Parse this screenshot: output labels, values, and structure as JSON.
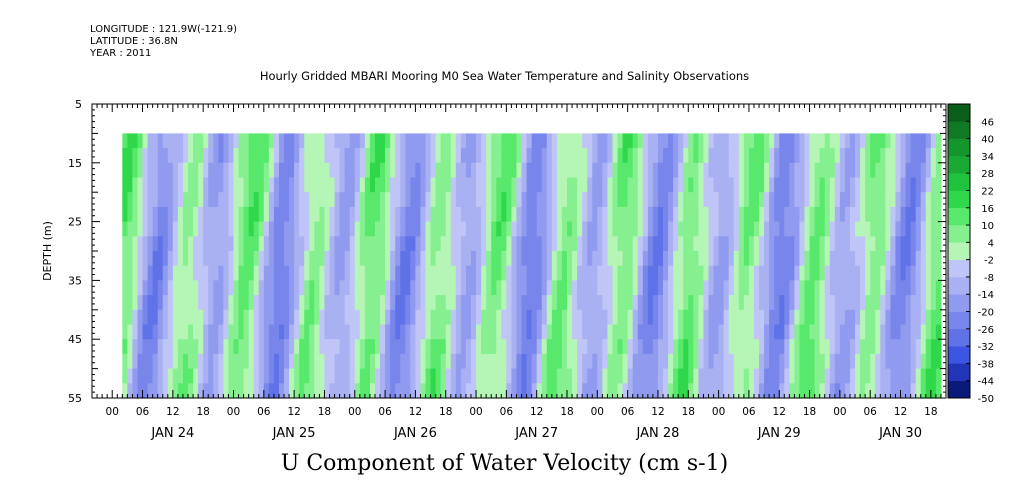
{
  "header": {
    "longitude": "LONGITUDE : 121.9W(-121.9)",
    "latitude": "LATITUDE : 36.8N",
    "year": "YEAR : 2011"
  },
  "chart_data": {
    "type": "heatmap",
    "title": "Hourly Gridded MBARI Mooring M0 Sea Water Temperature and Salinity Observations",
    "xlabel": "",
    "ylabel": "DEPTH (m)",
    "bottom_title": "U Component of Water Velocity (cm s-1)",
    "y_axis": {
      "ticks": [
        5,
        15,
        25,
        35,
        45,
        55
      ],
      "range": [
        5,
        55
      ],
      "inverted": true
    },
    "x_axis": {
      "start_hour_label": "00",
      "hour_tick_labels": [
        "00",
        "06",
        "12",
        "18",
        "00",
        "06",
        "12",
        "18",
        "00",
        "06",
        "12",
        "18",
        "00",
        "06",
        "12",
        "18",
        "00",
        "06",
        "12",
        "18",
        "00",
        "06",
        "12",
        "18",
        "00",
        "06",
        "12",
        "18"
      ],
      "day_labels": [
        "JAN 24",
        "JAN 25",
        "JAN 26",
        "JAN 27",
        "JAN 28",
        "JAN 29",
        "JAN 30"
      ],
      "range": [
        "JAN 23 20:00",
        "JAN 30 21:00"
      ]
    },
    "data_extent": {
      "time": [
        "JAN 24 02:00",
        "JAN 30 20:00"
      ],
      "depth": [
        10,
        55
      ]
    },
    "colorbar": {
      "labels": [
        "46",
        "40",
        "34",
        "28",
        "22",
        "16",
        "10",
        "4",
        "-2",
        "-8",
        "-14",
        "-20",
        "-26",
        "-32",
        "-38",
        "-44",
        "-50"
      ],
      "range": [
        -50,
        52
      ]
    },
    "values_hint": "U velocity field alternating between positive (green, ~4 to 28) and negative (blue, ~-2 to -32) bands with a period of roughly 12 hours, tilting with depth"
  }
}
